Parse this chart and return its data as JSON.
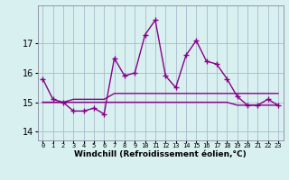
{
  "xlabel": "Windchill (Refroidissement éolien,°C)",
  "x": [
    0,
    1,
    2,
    3,
    4,
    5,
    6,
    7,
    8,
    9,
    10,
    11,
    12,
    13,
    14,
    15,
    16,
    17,
    18,
    19,
    20,
    21,
    22,
    23
  ],
  "y_main": [
    15.8,
    15.1,
    15.0,
    14.7,
    14.7,
    14.8,
    14.6,
    16.5,
    15.9,
    16.0,
    17.3,
    17.8,
    15.9,
    15.5,
    16.6,
    17.1,
    16.4,
    16.3,
    15.8,
    15.2,
    14.9,
    14.9,
    15.1,
    14.9
  ],
  "y_min": [
    15.0,
    15.0,
    15.0,
    15.0,
    15.0,
    15.0,
    15.0,
    15.0,
    15.0,
    15.0,
    15.0,
    15.0,
    15.0,
    15.0,
    15.0,
    15.0,
    15.0,
    15.0,
    15.0,
    14.9,
    14.9,
    14.9,
    14.9,
    14.9
  ],
  "y_max": [
    15.0,
    15.0,
    15.0,
    15.1,
    15.1,
    15.1,
    15.1,
    15.3,
    15.3,
    15.3,
    15.3,
    15.3,
    15.3,
    15.3,
    15.3,
    15.3,
    15.3,
    15.3,
    15.3,
    15.3,
    15.3,
    15.3,
    15.3,
    15.3
  ],
  "line_color": "#880088",
  "bg_color": "#d8f0f0",
  "grid_color": "#aabbcc",
  "ylim": [
    13.7,
    18.3
  ],
  "yticks": [
    14,
    15,
    16,
    17
  ],
  "xlim": [
    -0.5,
    23.5
  ]
}
